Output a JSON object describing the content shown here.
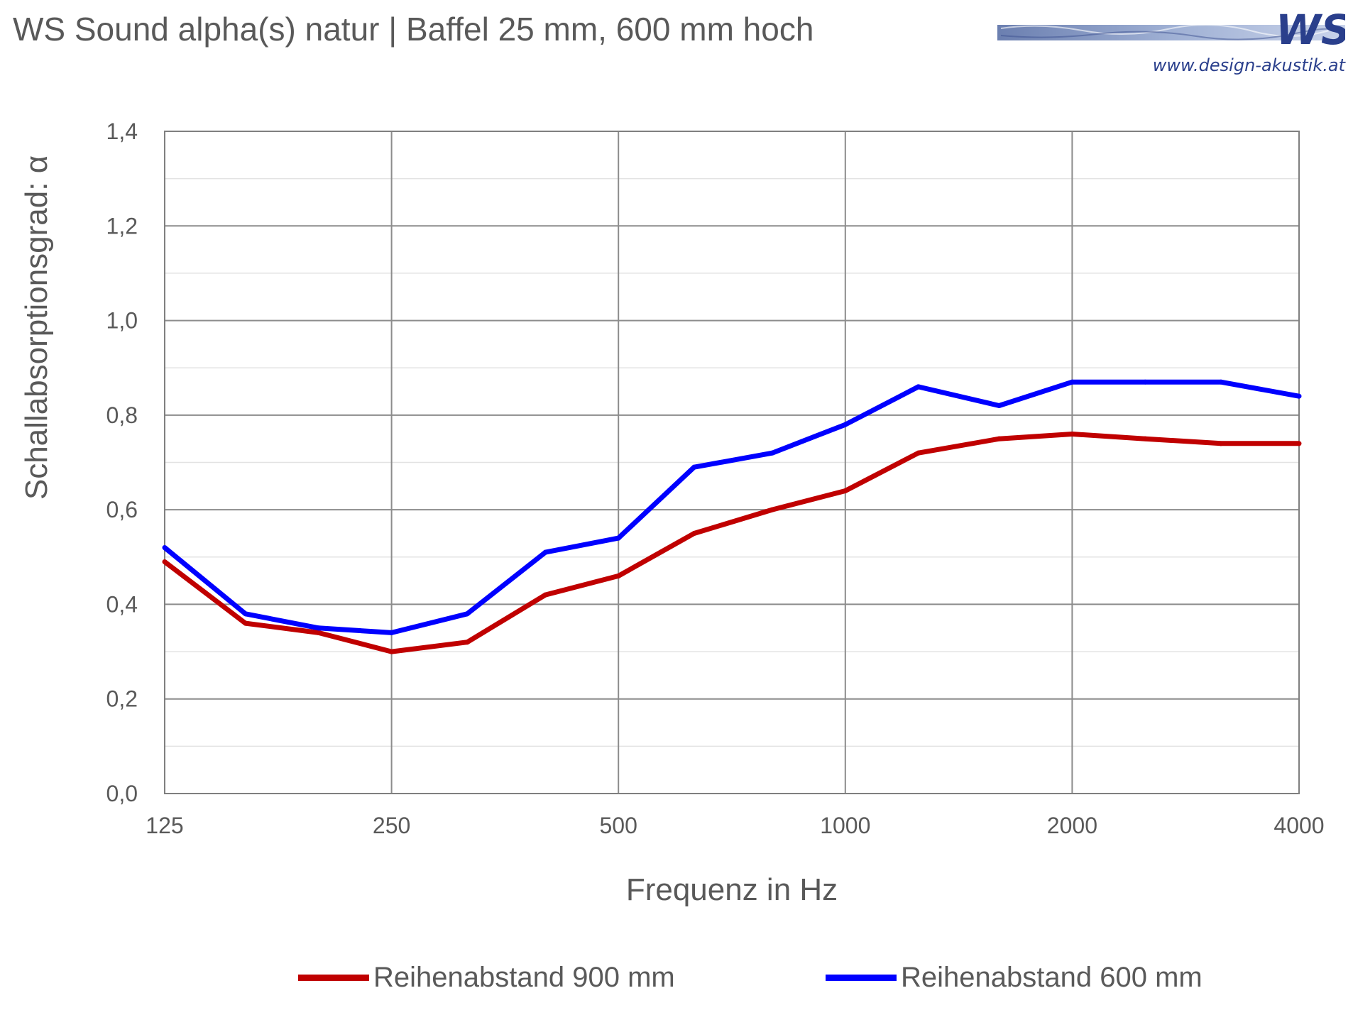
{
  "title": "WS Sound alpha(s) natur | Baffel 25 mm, 600 mm hoch",
  "logo": {
    "text": "WS",
    "url_text": "www.design-akustik.at",
    "colors": {
      "band": "#8fa3c8",
      "letters": "#2a3f8c"
    }
  },
  "chart_data": {
    "type": "line",
    "title": "WS Sound alpha(s) natur | Baffel 25 mm, 600 mm hoch",
    "xlabel": "Frequenz in Hz",
    "ylabel": "Schallabsorptionsgrad: α",
    "x_scale": "log2",
    "xlim": [
      125,
      4000
    ],
    "ylim": [
      0,
      1.4
    ],
    "x_ticks": [
      {
        "value": 125,
        "label": "125"
      },
      {
        "value": 250,
        "label": "250"
      },
      {
        "value": 500,
        "label": "500"
      },
      {
        "value": 1000,
        "label": "1000"
      },
      {
        "value": 2000,
        "label": "2000"
      },
      {
        "value": 4000,
        "label": "4000"
      }
    ],
    "y_ticks": [
      {
        "value": 0.0,
        "label": "0,0"
      },
      {
        "value": 0.2,
        "label": "0,2"
      },
      {
        "value": 0.4,
        "label": "0,4"
      },
      {
        "value": 0.6,
        "label": "0,6"
      },
      {
        "value": 0.8,
        "label": "0,8"
      },
      {
        "value": 1.0,
        "label": "1,0"
      },
      {
        "value": 1.2,
        "label": "1,2"
      },
      {
        "value": 1.4,
        "label": "1,4"
      }
    ],
    "x": [
      125,
      160,
      200,
      250,
      315,
      400,
      500,
      630,
      800,
      1000,
      1250,
      1600,
      2000,
      2500,
      3150,
      4000
    ],
    "series": [
      {
        "name": "Reihenabstand 900 mm",
        "color": "#c00000",
        "values": [
          0.49,
          0.36,
          0.34,
          0.3,
          0.32,
          0.42,
          0.46,
          0.55,
          0.6,
          0.64,
          0.72,
          0.75,
          0.76,
          0.75,
          0.74,
          0.74
        ]
      },
      {
        "name": "Reihenabstand 600 mm",
        "color": "#0000ff",
        "values": [
          0.52,
          0.38,
          0.35,
          0.34,
          0.38,
          0.51,
          0.54,
          0.69,
          0.72,
          0.78,
          0.86,
          0.82,
          0.87,
          0.87,
          0.87,
          0.84
        ]
      }
    ],
    "grid": true,
    "legend": "bottom"
  }
}
